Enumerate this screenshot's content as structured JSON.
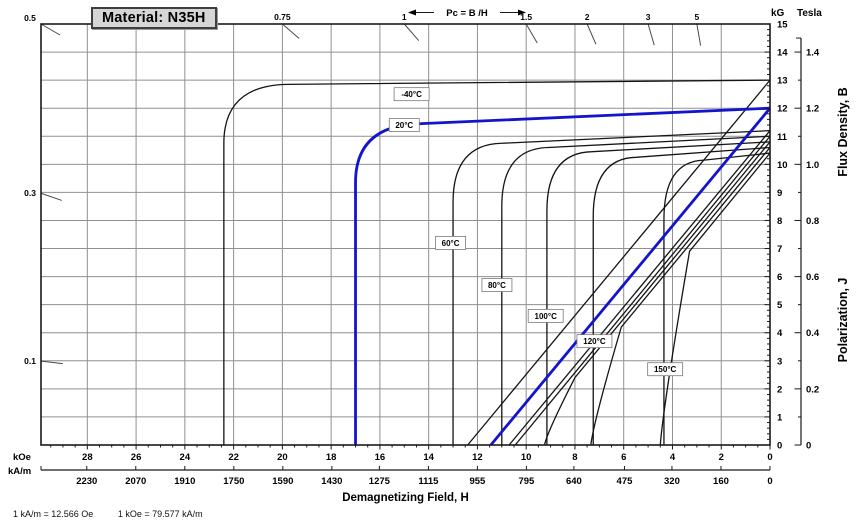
{
  "title": "Material: N35H",
  "footnote": {
    "part1": "1 kA/m = 12.566 Oe",
    "part2": "1 kOe = 79.577 kA/m"
  },
  "pc_scale": {
    "annotation": "Pc = B /H",
    "top_labels": [
      "0.5",
      "0.75",
      "1",
      "1.5",
      "2",
      "3",
      "5"
    ],
    "top_values": [
      0.5,
      0.75,
      1,
      1.5,
      2,
      3,
      5
    ],
    "left_labels": [
      "0.3",
      "0.1"
    ],
    "left_values": [
      0.3,
      0.1
    ]
  },
  "x_axis": {
    "title": "Demagnetizing Field, H",
    "primary_unit": "kOe",
    "secondary_unit": "kA/m",
    "koe_labels": [
      28,
      26,
      24,
      22,
      20,
      18,
      16,
      14,
      12,
      10,
      8,
      6,
      4,
      2,
      0
    ],
    "kam_labels": [
      2230,
      2070,
      1910,
      1750,
      1590,
      1430,
      1275,
      1115,
      955,
      795,
      640,
      475,
      320,
      160,
      0
    ],
    "koe_max": 29.9
  },
  "y_axis": {
    "primary_unit": "kG",
    "secondary_unit": "Tesla",
    "kg_labels": [
      15,
      14,
      13,
      12,
      11,
      10,
      9,
      8,
      7,
      6,
      5,
      4,
      3,
      2,
      1,
      0
    ],
    "tesla_labels": [
      "1.4",
      "1.2",
      "1.0",
      "0.8",
      "0.6",
      "0.4",
      "0.2",
      "0"
    ],
    "tesla_kg_positions": [
      14,
      12,
      10,
      8,
      6,
      4,
      2,
      0
    ],
    "kg_max": 15,
    "title_lower": "Polarization,   J",
    "title_upper": "Flux Density,   B"
  },
  "chart_data": {
    "type": "line",
    "title": "Material: N35H demagnetization curves",
    "xlabel": "Demagnetizing Field, H (kOe / kA/m)",
    "ylabel": "Polarization J / Flux Density B (kG / Tesla)",
    "x_range_koe": [
      29.9,
      0
    ],
    "y_range_kg": [
      0,
      15
    ],
    "grid": "on",
    "series": [
      {
        "id": "m40c",
        "label": "-40°C",
        "color": "#141414",
        "emphasis": false,
        "Br_kG": 13.0,
        "knee_h_kOe": 19.8,
        "knee_J_kG": 12.85,
        "Hcj_kOe": 22.4,
        "Hcb_kOe": 12.4,
        "bend": null,
        "label_at": [
          14.7,
          12.5
        ]
      },
      {
        "id": "20c",
        "label": "20°C",
        "color": "#1414cc",
        "emphasis": true,
        "Br_kG": 12.0,
        "knee_h_kOe": 14.3,
        "knee_J_kG": 11.45,
        "Hcj_kOe": 17.0,
        "Hcb_kOe": 11.45,
        "bend": null,
        "label_at": [
          15.0,
          11.4
        ]
      },
      {
        "id": "60c",
        "label": "60°C",
        "color": "#141414",
        "emphasis": false,
        "Br_kG": 11.2,
        "knee_h_kOe": 11.0,
        "knee_J_kG": 10.75,
        "Hcj_kOe": 13.0,
        "Hcb_kOe": 10.7,
        "bend": null,
        "label_at": [
          13.1,
          7.2
        ]
      },
      {
        "id": "80c",
        "label": "80°C",
        "color": "#141414",
        "emphasis": false,
        "Br_kG": 11.0,
        "knee_h_kOe": 9.1,
        "knee_J_kG": 10.6,
        "Hcj_kOe": 11.0,
        "Hcb_kOe": 10.45,
        "bend": null,
        "label_at": [
          11.2,
          5.7
        ]
      },
      {
        "id": "100c",
        "label": "100°C",
        "color": "#141414",
        "emphasis": false,
        "Br_kG": 10.8,
        "knee_h_kOe": 7.3,
        "knee_J_kG": 10.45,
        "Hcj_kOe": 9.15,
        "Hcb_kOe": 9.25,
        "bend": [
          8.0,
          2.4
        ],
        "label_at": [
          9.2,
          4.6
        ]
      },
      {
        "id": "120c",
        "label": "120°C",
        "color": "#141414",
        "emphasis": false,
        "Br_kG": 10.6,
        "knee_h_kOe": 5.5,
        "knee_J_kG": 10.25,
        "Hcj_kOe": 7.25,
        "Hcb_kOe": 7.35,
        "bend": [
          6.1,
          4.2
        ],
        "label_at": [
          7.2,
          3.7
        ]
      },
      {
        "id": "150c",
        "label": "150°C",
        "color": "#141414",
        "emphasis": false,
        "Br_kG": 10.4,
        "knee_h_kOe": 2.7,
        "knee_J_kG": 10.15,
        "Hcj_kOe": 4.35,
        "Hcb_kOe": 4.5,
        "bend": [
          3.3,
          6.9
        ],
        "label_at": [
          4.3,
          2.7
        ]
      }
    ]
  }
}
